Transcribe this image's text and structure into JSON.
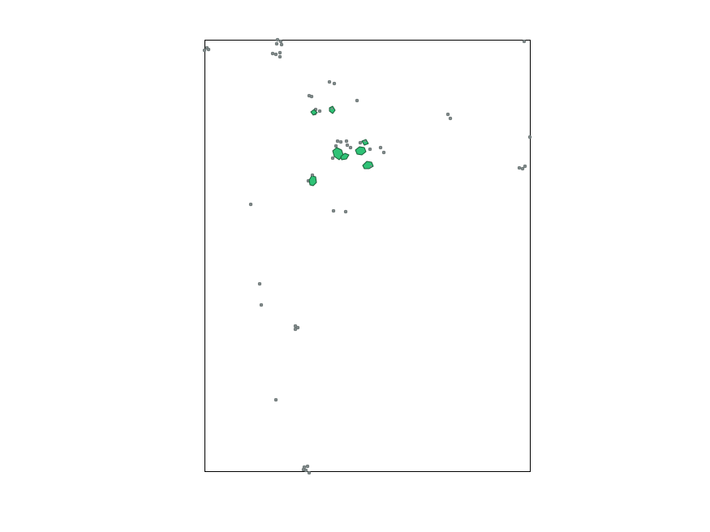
{
  "map": {
    "colors": {
      "background": "#ffffff",
      "frame": "#000000",
      "gray_feature": "#808a8a",
      "gray_outline": "#5d6666",
      "green_feature": "#2fc276",
      "green_outline": "#1a5c38"
    }
  }
}
